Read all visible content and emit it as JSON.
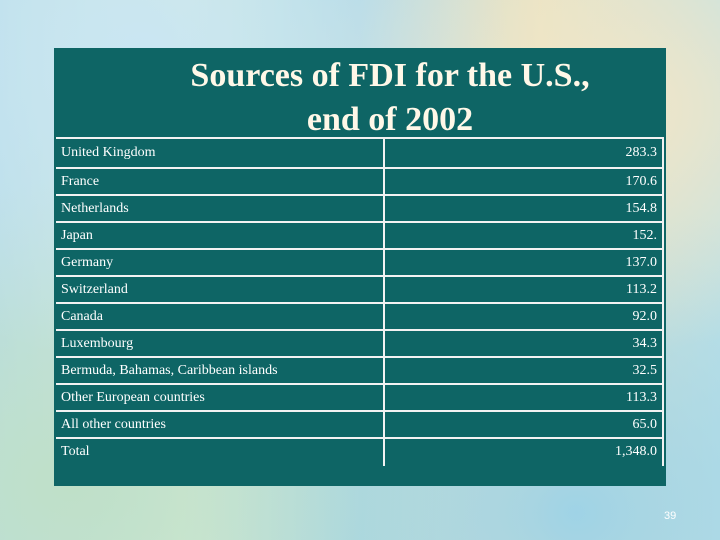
{
  "title": {
    "line1": "Sources of FDI for the U.S.,",
    "line2": "end of 2002"
  },
  "rows": [
    {
      "country": "United Kingdom",
      "value": "283.3"
    },
    {
      "country": "France",
      "value": "170.6"
    },
    {
      "country": "Netherlands",
      "value": "154.8"
    },
    {
      "country": "Japan",
      "value": "152."
    },
    {
      "country": "Germany",
      "value": "137.0"
    },
    {
      "country": "Switzerland",
      "value": "113.2"
    },
    {
      "country": "Canada",
      "value": "92.0"
    },
    {
      "country": "Luxembourg",
      "value": "34.3"
    },
    {
      "country": "Bermuda, Bahamas, Caribbean islands",
      "value": "32.5"
    },
    {
      "country": "Other European countries",
      "value": "113.3"
    },
    {
      "country": "All other countries",
      "value": "65.0"
    },
    {
      "country": "Total",
      "value": "1,348.0"
    }
  ],
  "page_number": "39",
  "colors": {
    "panel": "#0e6565",
    "text": "#ffffff"
  }
}
